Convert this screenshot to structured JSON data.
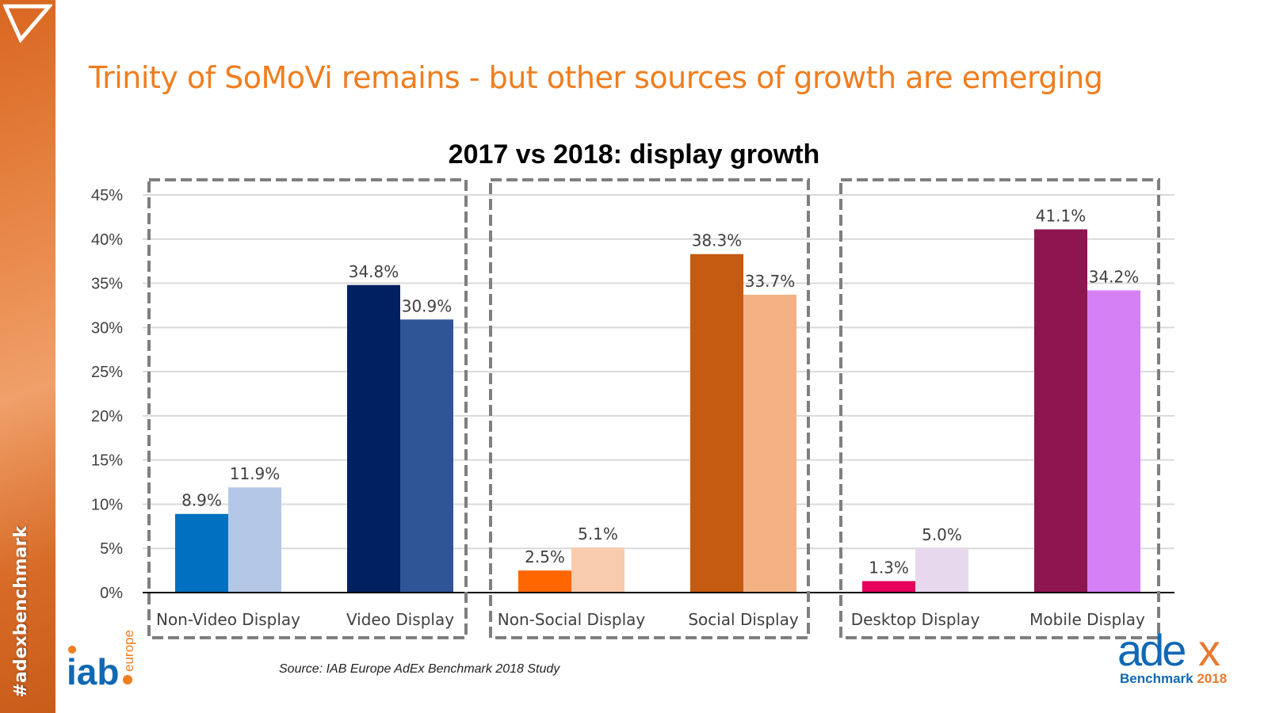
{
  "sidebar": {
    "hashtag": "#adexbenchmark",
    "icon": "triangle-down-outline-icon"
  },
  "slide": {
    "title": "Trinity of SoMoVi remains - but other sources of growth are emerging",
    "source": "Source: IAB Europe AdEx Benchmark 2018 Study"
  },
  "logos": {
    "iab": "iab europe",
    "adex": "adex Benchmark 2018"
  },
  "chart_data": {
    "type": "bar",
    "title": "2017 vs 2018: display growth",
    "categories": [
      "Non-Video Display",
      "Video Display",
      "Non-Social Display",
      "Social Display",
      "Desktop Display",
      "Mobile Display"
    ],
    "series": [
      {
        "values": [
          8.9,
          34.8,
          2.5,
          38.3,
          1.3,
          41.1
        ],
        "labels": [
          "8.9%",
          "34.8%",
          "2.5%",
          "38.3%",
          "1.3%",
          "41.1%"
        ],
        "colors": [
          "#0070C0",
          "#002060",
          "#FF6600",
          "#C55A11",
          "#E6005C",
          "#8E1550"
        ]
      },
      {
        "values": [
          11.9,
          30.9,
          5.1,
          33.7,
          5.0,
          34.2
        ],
        "labels": [
          "11.9%",
          "30.9%",
          "5.1%",
          "33.7%",
          "5.0%",
          "34.2%"
        ],
        "colors": [
          "#B4C7E7",
          "#2F5597",
          "#F8CBAD",
          "#F4B183",
          "#E8D8EE",
          "#D580F5"
        ]
      }
    ],
    "yticks": [
      "0%",
      "5%",
      "10%",
      "15%",
      "20%",
      "25%",
      "30%",
      "35%",
      "40%",
      "45%"
    ],
    "ylim": [
      0,
      45
    ],
    "grid": true,
    "groups": [
      [
        "Non-Video Display",
        "Video Display"
      ],
      [
        "Non-Social Display",
        "Social Display"
      ],
      [
        "Desktop Display",
        "Mobile Display"
      ]
    ]
  }
}
